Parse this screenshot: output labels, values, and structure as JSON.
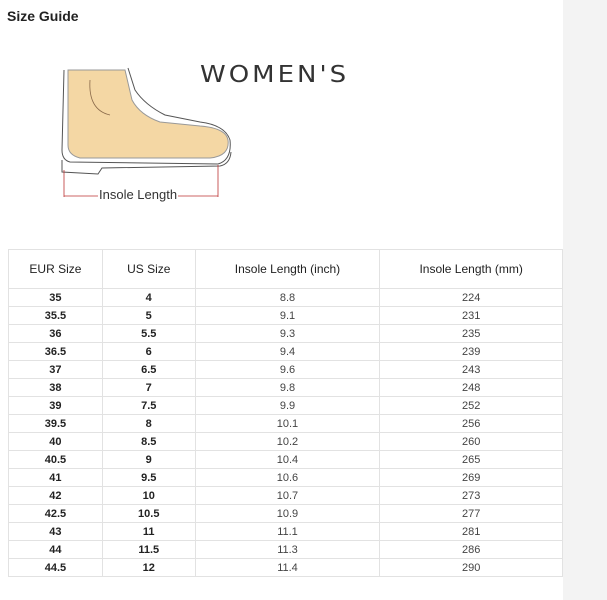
{
  "title": "Size Guide",
  "illustration": {
    "heading": "WOMEN'S",
    "measure_label": "Insole Length"
  },
  "table": {
    "headers": [
      "EUR Size",
      "US Size",
      "Insole Length  (inch)",
      "Insole Length  (mm)"
    ],
    "rows": [
      [
        "35",
        "4",
        "8.8",
        "224"
      ],
      [
        "35.5",
        "5",
        "9.1",
        "231"
      ],
      [
        "36",
        "5.5",
        "9.3",
        "235"
      ],
      [
        "36.5",
        "6",
        "9.4",
        "239"
      ],
      [
        "37",
        "6.5",
        "9.6",
        "243"
      ],
      [
        "38",
        "7",
        "9.8",
        "248"
      ],
      [
        "39",
        "7.5",
        "9.9",
        "252"
      ],
      [
        "39.5",
        "8",
        "10.1",
        "256"
      ],
      [
        "40",
        "8.5",
        "10.2",
        "260"
      ],
      [
        "40.5",
        "9",
        "10.4",
        "265"
      ],
      [
        "41",
        "9.5",
        "10.6",
        "269"
      ],
      [
        "42",
        "10",
        "10.7",
        "273"
      ],
      [
        "42.5",
        "10.5",
        "10.9",
        "277"
      ],
      [
        "43",
        "11",
        "11.1",
        "281"
      ],
      [
        "44",
        "11.5",
        "11.3",
        "286"
      ],
      [
        "44.5",
        "12",
        "11.4",
        "290"
      ]
    ]
  }
}
